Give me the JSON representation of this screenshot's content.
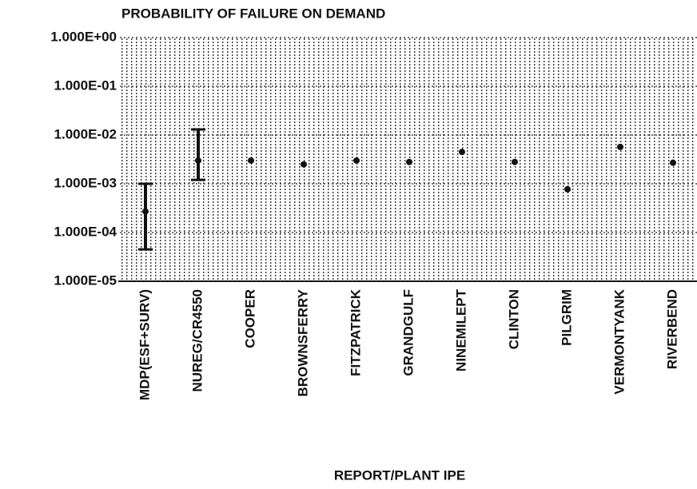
{
  "chart_data": {
    "type": "scatter",
    "title": "PROBABILITY OF FAILURE ON DEMAND",
    "x_label": "REPORT/PLANT IPE",
    "categories": [
      "MDP(ESF+SURV)",
      "NUREG/CR4550",
      "COOPER",
      "BROWNSFERRY",
      "FITZPATRICK",
      "GRANDGULF",
      "NINEMILEPT",
      "CLINTON",
      "PILGRIM",
      "VERMONTYANK",
      "RIVERBEND"
    ],
    "values": [
      0.00027,
      0.003,
      0.003,
      0.0025,
      0.003,
      0.0028,
      0.0045,
      0.0028,
      0.00077,
      0.0057,
      0.0027
    ],
    "lower": [
      4.5e-05,
      0.0012,
      null,
      null,
      null,
      null,
      null,
      null,
      null,
      null,
      null
    ],
    "upper": [
      0.001,
      0.013,
      null,
      null,
      null,
      null,
      null,
      null,
      null,
      null,
      null
    ],
    "color": "#111111",
    "log_y": true,
    "grid": true,
    "ylim": [
      1e-05,
      1
    ],
    "yticks": [
      {
        "value": 1e-05,
        "label": "1.000E-05"
      },
      {
        "value": 0.0001,
        "label": "1.000E-04"
      },
      {
        "value": 0.001,
        "label": "1.000E-03"
      },
      {
        "value": 0.01,
        "label": "1.000E-02"
      },
      {
        "value": 0.1,
        "label": "1.000E-01"
      },
      {
        "value": 1,
        "label": "1.000E+00"
      }
    ]
  }
}
